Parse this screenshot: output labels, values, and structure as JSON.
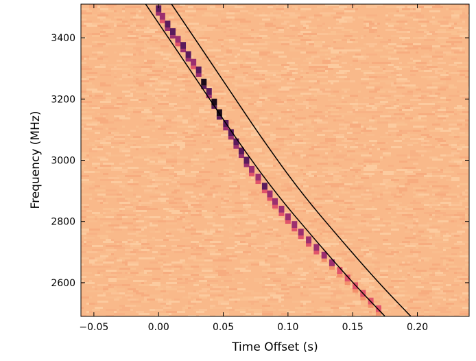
{
  "chart_data": {
    "type": "heatmap",
    "title": "",
    "xlabel": "Time Offset (s)",
    "ylabel": "Frequency (MHz)",
    "xlim": [
      -0.06,
      0.24
    ],
    "ylim": [
      2490,
      3510
    ],
    "x_ticks": [
      {
        "value": -0.05,
        "label": "−0.05"
      },
      {
        "value": 0.0,
        "label": "0.00"
      },
      {
        "value": 0.05,
        "label": "0.05"
      },
      {
        "value": 0.1,
        "label": "0.10"
      },
      {
        "value": 0.15,
        "label": "0.15"
      },
      {
        "value": 0.2,
        "label": "0.20"
      }
    ],
    "y_ticks": [
      {
        "value": 2600,
        "label": "2600"
      },
      {
        "value": 2800,
        "label": "2800"
      },
      {
        "value": 3000,
        "label": "3000"
      },
      {
        "value": 3200,
        "label": "3200"
      },
      {
        "value": 3400,
        "label": "3400"
      }
    ],
    "background_color": "#f9b98a",
    "colormap": [
      "#fcd2a6",
      "#f9b98a",
      "#f4906b",
      "#e1546a",
      "#9c2f6f",
      "#5a1a5c",
      "#1a0a1a"
    ],
    "boundary_lines": [
      {
        "points": [
          [
            -0.01,
            3510
          ],
          [
            0.03,
            3260
          ],
          [
            0.06,
            3070
          ],
          [
            0.09,
            2895
          ],
          [
            0.12,
            2745
          ],
          [
            0.15,
            2600
          ],
          [
            0.175,
            2490
          ]
        ]
      },
      {
        "points": [
          [
            0.01,
            3510
          ],
          [
            0.05,
            3260
          ],
          [
            0.08,
            3070
          ],
          [
            0.11,
            2895
          ],
          [
            0.14,
            2745
          ],
          [
            0.17,
            2600
          ],
          [
            0.195,
            2490
          ]
        ]
      }
    ],
    "pulse_track": [
      {
        "t": 0.0,
        "f": 3495,
        "intensity": 0.7
      },
      {
        "t": 0.003,
        "f": 3470,
        "intensity": 0.5
      },
      {
        "t": 0.007,
        "f": 3445,
        "intensity": 0.75
      },
      {
        "t": 0.011,
        "f": 3420,
        "intensity": 0.8
      },
      {
        "t": 0.015,
        "f": 3395,
        "intensity": 0.6
      },
      {
        "t": 0.019,
        "f": 3375,
        "intensity": 0.8
      },
      {
        "t": 0.023,
        "f": 3345,
        "intensity": 0.7
      },
      {
        "t": 0.027,
        "f": 3320,
        "intensity": 0.6
      },
      {
        "t": 0.031,
        "f": 3295,
        "intensity": 0.8
      },
      {
        "t": 0.035,
        "f": 3255,
        "intensity": 0.95
      },
      {
        "t": 0.039,
        "f": 3225,
        "intensity": 0.85
      },
      {
        "t": 0.043,
        "f": 3190,
        "intensity": 0.95
      },
      {
        "t": 0.047,
        "f": 3155,
        "intensity": 0.95
      },
      {
        "t": 0.052,
        "f": 3120,
        "intensity": 0.8
      },
      {
        "t": 0.056,
        "f": 3090,
        "intensity": 0.85
      },
      {
        "t": 0.06,
        "f": 3060,
        "intensity": 0.75
      },
      {
        "t": 0.064,
        "f": 3030,
        "intensity": 0.8
      },
      {
        "t": 0.068,
        "f": 3000,
        "intensity": 0.85
      },
      {
        "t": 0.072,
        "f": 2970,
        "intensity": 0.55
      },
      {
        "t": 0.077,
        "f": 2945,
        "intensity": 0.5
      },
      {
        "t": 0.082,
        "f": 2915,
        "intensity": 0.65
      },
      {
        "t": 0.086,
        "f": 2890,
        "intensity": 0.6
      },
      {
        "t": 0.09,
        "f": 2865,
        "intensity": 0.5
      },
      {
        "t": 0.095,
        "f": 2840,
        "intensity": 0.45
      },
      {
        "t": 0.1,
        "f": 2815,
        "intensity": 0.55
      },
      {
        "t": 0.105,
        "f": 2790,
        "intensity": 0.45
      },
      {
        "t": 0.11,
        "f": 2765,
        "intensity": 0.5
      },
      {
        "t": 0.116,
        "f": 2740,
        "intensity": 0.45
      },
      {
        "t": 0.122,
        "f": 2715,
        "intensity": 0.45
      },
      {
        "t": 0.128,
        "f": 2690,
        "intensity": 0.4
      },
      {
        "t": 0.134,
        "f": 2665,
        "intensity": 0.4
      },
      {
        "t": 0.14,
        "f": 2640,
        "intensity": 0.35
      },
      {
        "t": 0.146,
        "f": 2615,
        "intensity": 0.35
      },
      {
        "t": 0.152,
        "f": 2590,
        "intensity": 0.3
      },
      {
        "t": 0.158,
        "f": 2565,
        "intensity": 0.3
      },
      {
        "t": 0.164,
        "f": 2540,
        "intensity": 0.3
      },
      {
        "t": 0.17,
        "f": 2515,
        "intensity": 0.3
      }
    ],
    "grid": false,
    "legend": "none"
  }
}
